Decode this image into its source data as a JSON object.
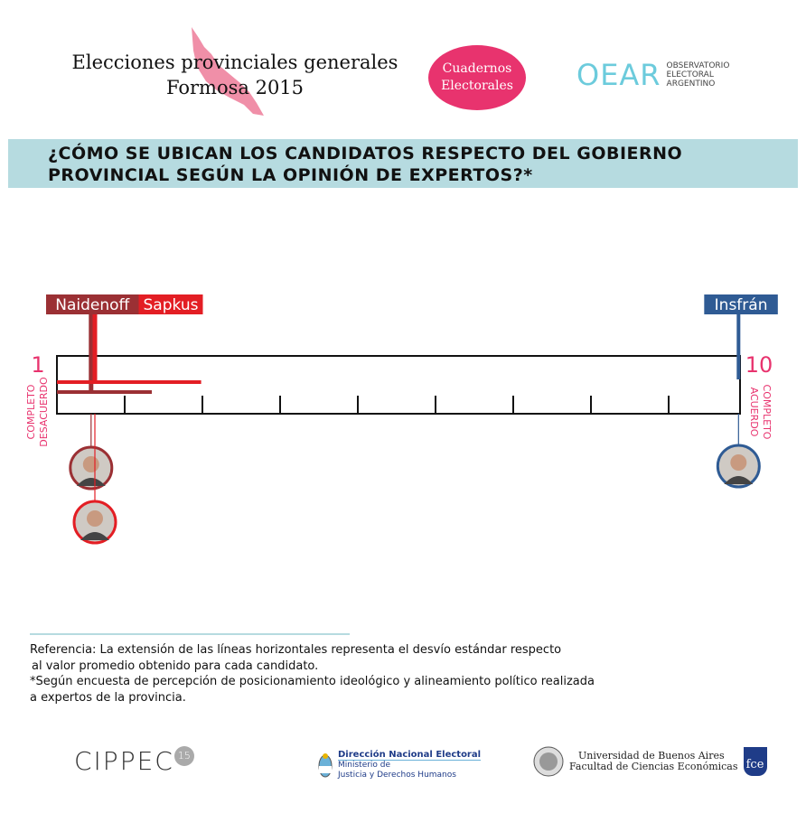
{
  "header": {
    "title_line1": "Elecciones provinciales generales",
    "title_line2": "Formosa 2015",
    "badge_line1": "Cuadernos",
    "badge_line2": "Electorales",
    "oear_logo": "OEAR",
    "oear_line1": "OBSERVATORIO",
    "oear_line2": "ELECTORAL",
    "oear_line3": "ARGENTINO"
  },
  "banner": {
    "line1": "¿CÓMO SE UBICAN LOS CANDIDATOS RESPECTO DEL GOBIERNO",
    "line2": "PROVINCIAL SEGÚN LA OPINIÓN DE EXPERTOS?*"
  },
  "chart_data": {
    "type": "scatter",
    "xlim": [
      1,
      10
    ],
    "min_label": "1",
    "max_label": "10",
    "min_caption_1": "COMPLETO",
    "min_caption_2": "DESACUERDO",
    "max_caption_1": "COMPLETO",
    "max_caption_2": "ACUERDO",
    "ticks": [
      2,
      3,
      4,
      5,
      6,
      7,
      8,
      9
    ],
    "candidates": [
      {
        "name": "Naidenoff",
        "value": 1.45,
        "sd": 0.8,
        "color": "#9b3034"
      },
      {
        "name": "Sapkus",
        "value": 1.5,
        "sd": 1.4,
        "color": "#e31e24"
      },
      {
        "name": "Insfrán",
        "value": 9.98,
        "sd": 0,
        "color": "#2f5b94"
      }
    ],
    "axis_color": "#e8336e"
  },
  "reference": {
    "line1": "Referencia: La extensión de las líneas horizontales representa el desvío estándar respecto",
    "line2": "al valor promedio obtenido para cada candidato.",
    "line3": "*Según encuesta de percepción de posicionamiento ideológico y alineamiento político realizada",
    "line4": "a expertos de la provincia."
  },
  "footer": {
    "cippec": "CIPPEC",
    "cippec_badge": "15",
    "dne_title": "Dirección Nacional Electoral",
    "dne_sub1": "Ministerio de",
    "dne_sub2": "Justicia y Derechos Humanos",
    "uba_line1": "Universidad de Buenos Aires",
    "uba_line2": "Facultad de Ciencias Económicas",
    "fce": "fce"
  }
}
